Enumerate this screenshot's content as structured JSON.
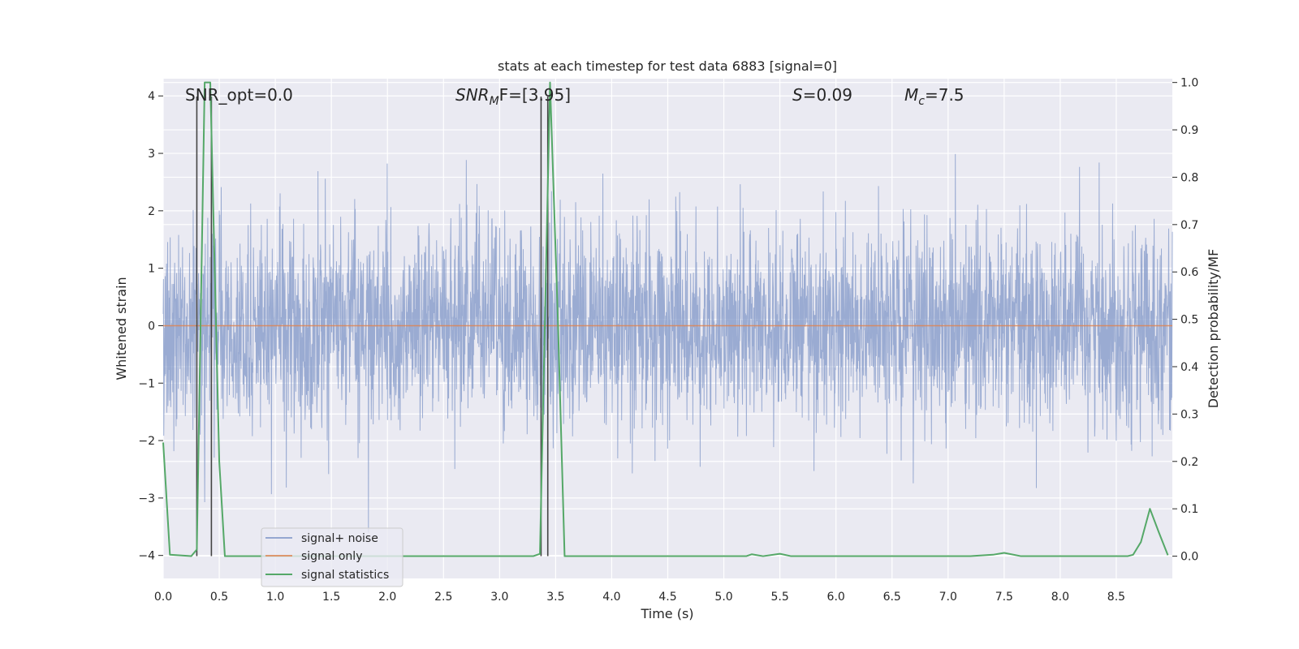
{
  "chart_data": {
    "type": "line",
    "title": "stats at each timestep for test data 6883 [signal=0]",
    "xlabel": "Time (s)",
    "ylabel_left": "Whitened strain",
    "ylabel_right": "Detection probability/MF",
    "xlim": [
      0.0,
      9.0
    ],
    "ylim_left": [
      -4.4,
      4.3
    ],
    "ylim_right": [
      -0.047,
      1.008
    ],
    "xticks": [
      0.0,
      0.5,
      1.0,
      1.5,
      2.0,
      2.5,
      3.0,
      3.5,
      4.0,
      4.5,
      5.0,
      5.5,
      6.0,
      6.5,
      7.0,
      7.5,
      8.0,
      8.5
    ],
    "xtick_labels": [
      "0.0",
      "0.5",
      "1.0",
      "1.5",
      "2.0",
      "2.5",
      "3.0",
      "3.5",
      "4.0",
      "4.5",
      "5.0",
      "5.5",
      "6.0",
      "6.5",
      "7.0",
      "7.5",
      "8.0",
      "8.5"
    ],
    "yticks_left": [
      -4,
      -3,
      -2,
      -1,
      0,
      1,
      2,
      3,
      4
    ],
    "ytick_labels_left": [
      "−4",
      "−3",
      "−2",
      "−1",
      "0",
      "1",
      "2",
      "3",
      "4"
    ],
    "yticks_right": [
      0.0,
      0.1,
      0.2,
      0.3,
      0.4,
      0.5,
      0.6,
      0.7,
      0.8,
      0.9,
      1.0
    ],
    "ytick_labels_right": [
      "0.0",
      "0.1",
      "0.2",
      "0.3",
      "0.4",
      "0.5",
      "0.6",
      "0.7",
      "0.8",
      "0.9",
      "1.0"
    ],
    "grid": true,
    "legend_position": "bottom-left",
    "annotations": {
      "snr_opt": "SNR_opt=0.0",
      "snr_mf_main": "SNR",
      "snr_mf_sub": "M",
      "snr_mf_rest": "F=[3.95]",
      "s_sym": "S",
      "s_val": "=0.09",
      "mc_sym": "M",
      "mc_sub": "c",
      "mc_val": "=7.5"
    },
    "series": [
      {
        "name": "signal+ noise",
        "color": "#7f96c7",
        "description": "whitened noise strain, approx normal with std ~0.85, range -3.6..3.95",
        "noise_std": 0.85,
        "noise_min": -3.6,
        "noise_max": 3.95,
        "x_start": 0.0,
        "x_end": 9.0
      },
      {
        "name": "signal only",
        "color": "#dd8452",
        "x": [
          0.0,
          9.0
        ],
        "y": [
          0.0,
          0.0
        ]
      },
      {
        "name": "signal statistics",
        "color": "#55a868",
        "axis": "right",
        "x": [
          0.0,
          0.06,
          0.25,
          0.3,
          0.37,
          0.42,
          0.5,
          0.55,
          3.3,
          3.36,
          3.45,
          3.52,
          3.58,
          5.2,
          5.25,
          5.35,
          5.5,
          5.6,
          7.2,
          7.4,
          7.5,
          7.65,
          8.6,
          8.65,
          8.72,
          8.8,
          8.88,
          8.96
        ],
        "y": [
          0.24,
          0.003,
          0.0,
          0.014,
          1.0,
          1.0,
          0.2,
          0.0,
          0.0,
          0.005,
          1.0,
          0.5,
          0.0,
          0.0,
          0.004,
          0.0,
          0.005,
          0.0,
          0.0,
          0.003,
          0.007,
          0.0,
          0.0,
          0.003,
          0.03,
          0.1,
          0.05,
          0.002
        ]
      }
    ],
    "vertical_markers": {
      "color": "#444444",
      "x": [
        0.3,
        0.43,
        3.37,
        3.43
      ]
    }
  },
  "legend": {
    "items": [
      "signal+ noise",
      "signal only",
      "signal statistics"
    ]
  }
}
